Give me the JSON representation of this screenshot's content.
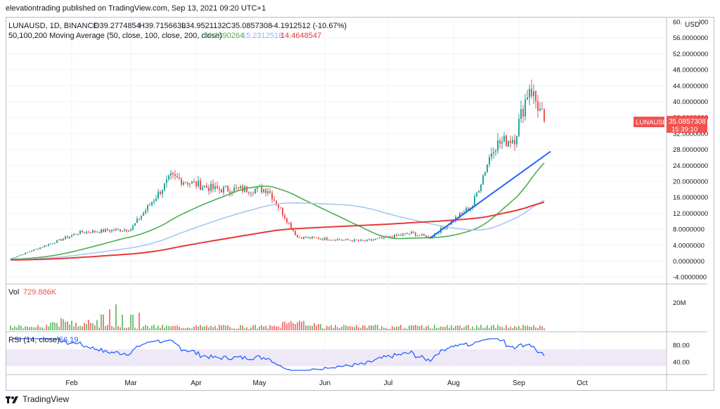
{
  "header": {
    "published": "elevationtrading published on TradingView.com, Sep 13, 2021 09:20 UTC+1"
  },
  "brand": {
    "name": "TradingView"
  },
  "chart_data": {
    "type": "candlestick",
    "symbol": "LUNAUSD",
    "legend_line1": "LUNAUSD, 1D, BINANCE",
    "ohlc": {
      "O": "O39.2774854",
      "H": "H39.7156639",
      "L": "L34.9521132",
      "C": "C35.0857308",
      "change": "-4.1912512 (-10.67%)"
    },
    "ma_legend": {
      "label": "50,100,200 Moving Average (50, close, 100, close, 200, close)",
      "ma50": "24.1390264",
      "ma100": "15.2312518",
      "ma200": "14.4648547"
    },
    "price_tag": {
      "symbol": "LUNAUSD",
      "price": "35.0857308",
      "countdown": "15:39:10"
    },
    "currency": "USD",
    "yaxis": {
      "ticks": [
        "60.0000000",
        "56.0000000",
        "52.0000000",
        "48.0000000",
        "44.0000000",
        "40.0000000",
        "36.0000000",
        "32.0000000",
        "28.0000000",
        "24.0000000",
        "20.0000000",
        "16.0000000",
        "12.0000000",
        "8.0000000",
        "4.0000000",
        "0.0000000",
        "-4.0000000"
      ],
      "range": [
        -5,
        61
      ]
    },
    "xaxis": {
      "ticks": [
        "Feb",
        "Mar",
        "Apr",
        "May",
        "Jun",
        "Jul",
        "Aug",
        "Sep",
        "Oct"
      ]
    },
    "volume": {
      "label": "Vol",
      "value": "729.886K",
      "tick": "20M"
    },
    "rsi": {
      "label": "RSI (14, close)",
      "value": "56.19",
      "ticks": [
        "80.00",
        "40.00"
      ],
      "band": [
        30,
        70
      ]
    },
    "colors": {
      "up": "#26a69a",
      "down": "#ef5350",
      "ma50": "#4caf50",
      "ma100": "#a5c8f5",
      "ma200": "#e53935",
      "trend": "#2962ff",
      "rsi": "#2962ff",
      "vol_up": "#4caf50",
      "vol_down": "#ef5350"
    },
    "key_points": [
      {
        "date": "2021-01-03",
        "close": 0.6
      },
      {
        "date": "2021-02-05",
        "close": 7.2
      },
      {
        "date": "2021-03-01",
        "close": 8.0
      },
      {
        "date": "2021-03-20",
        "close": 21.0
      },
      {
        "date": "2021-04-10",
        "close": 18.0
      },
      {
        "date": "2021-05-05",
        "close": 18.0
      },
      {
        "date": "2021-05-19",
        "close": 6.0
      },
      {
        "date": "2021-06-20",
        "close": 5.0
      },
      {
        "date": "2021-07-12",
        "close": 7.0
      },
      {
        "date": "2021-07-21",
        "close": 5.9
      },
      {
        "date": "2021-08-10",
        "close": 14.0
      },
      {
        "date": "2021-08-20",
        "close": 29.0
      },
      {
        "date": "2021-08-30",
        "close": 31.0
      },
      {
        "date": "2021-09-06",
        "close": 44.0
      },
      {
        "date": "2021-09-13",
        "close": 35.0857308
      }
    ]
  }
}
